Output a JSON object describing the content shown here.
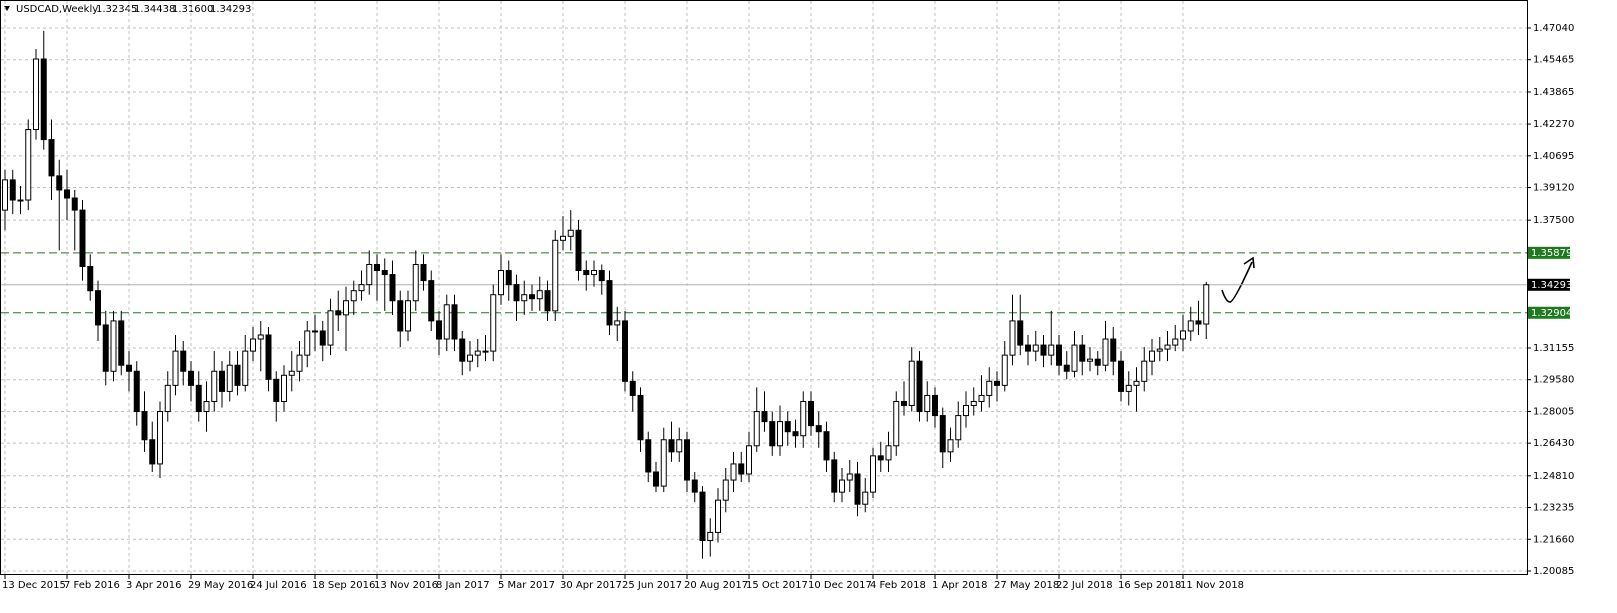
{
  "header": {
    "symbol": "USDCAD,Weekly",
    "ohlc": [
      "1.32345",
      "1.34438",
      "1.31600",
      "1.34293"
    ]
  },
  "chart_data": {
    "type": "candlestick",
    "categories": [
      "13 Dec 2015",
      null,
      null,
      null,
      null,
      null,
      null,
      null,
      "7 Feb 2016",
      null,
      null,
      null,
      null,
      null,
      null,
      null,
      "3 Apr 2016",
      null,
      null,
      null,
      null,
      null,
      null,
      null,
      "29 May 2016",
      null,
      null,
      null,
      null,
      null,
      null,
      null,
      "24 Jul 2016",
      null,
      null,
      null,
      null,
      null,
      null,
      null,
      "18 Sep 2016",
      null,
      null,
      null,
      null,
      null,
      null,
      null,
      "13 Nov 2016",
      null,
      null,
      null,
      null,
      null,
      null,
      null,
      "8 Jan 2017",
      null,
      null,
      null,
      null,
      null,
      null,
      null,
      "5 Mar 2017",
      null,
      null,
      null,
      null,
      null,
      null,
      null,
      "30 Apr 2017",
      null,
      null,
      null,
      null,
      null,
      null,
      null,
      "25 Jun 2017",
      null,
      null,
      null,
      null,
      null,
      null,
      null,
      "20 Aug 2017",
      null,
      null,
      null,
      null,
      null,
      null,
      null,
      "15 Oct 2017",
      null,
      null,
      null,
      null,
      null,
      null,
      null,
      "10 Dec 2017",
      null,
      null,
      null,
      null,
      null,
      null,
      null,
      "4 Feb 2018",
      null,
      null,
      null,
      null,
      null,
      null,
      null,
      "1 Apr 2018",
      null,
      null,
      null,
      null,
      null,
      null,
      null,
      "27 May 2018",
      null,
      null,
      null,
      null,
      null,
      null,
      null,
      "22 Jul 2018",
      null,
      null,
      null,
      null,
      null,
      null,
      null,
      "16 Sep 2018",
      null,
      null,
      null,
      null,
      null,
      null,
      null,
      "11 Nov 2018",
      null,
      null,
      null
    ],
    "open": [
      1.38,
      1.395,
      1.385,
      1.385,
      1.42,
      1.455,
      1.415,
      1.397,
      1.39,
      1.386,
      1.38,
      1.352,
      1.34,
      1.323,
      1.3,
      1.325,
      1.303,
      1.3,
      1.28,
      1.266,
      1.254,
      1.28,
      1.293,
      1.31,
      1.3,
      1.293,
      1.28,
      1.285,
      1.3,
      1.29,
      1.303,
      1.293,
      1.31,
      1.316,
      1.318,
      1.296,
      1.285,
      1.298,
      1.3,
      1.308,
      1.32,
      1.32,
      1.313,
      1.33,
      1.328,
      1.335,
      1.34,
      1.343,
      1.353,
      1.35,
      1.348,
      1.335,
      1.32,
      1.335,
      1.353,
      1.345,
      1.325,
      1.316,
      1.333,
      1.316,
      1.305,
      1.308,
      1.31,
      1.31,
      1.338,
      1.35,
      1.343,
      1.335,
      1.338,
      1.336,
      1.34,
      1.33,
      1.365,
      1.367,
      1.37,
      1.35,
      1.348,
      1.35,
      1.345,
      1.323,
      1.325,
      1.295,
      1.288,
      1.266,
      1.25,
      1.243,
      1.266,
      1.26,
      1.266,
      1.246,
      1.24,
      1.216,
      1.22,
      1.236,
      1.246,
      1.254,
      1.249,
      1.263,
      1.28,
      1.275,
      1.263,
      1.275,
      1.27,
      1.268,
      1.285,
      1.273,
      1.27,
      1.256,
      1.24,
      1.246,
      1.249,
      1.234,
      1.24,
      1.258,
      1.256,
      1.263,
      1.285,
      1.283,
      1.305,
      1.28,
      1.288,
      1.278,
      1.26,
      1.266,
      1.278,
      1.283,
      1.285,
      1.288,
      1.295,
      1.293,
      1.308,
      1.325,
      1.313,
      1.31,
      1.313,
      1.308,
      1.313,
      1.303,
      1.3,
      1.313,
      1.305,
      1.306,
      1.303,
      1.316,
      1.305,
      1.29,
      1.293,
      1.295,
      1.305,
      1.31,
      1.311,
      1.313,
      1.316,
      1.32,
      1.325,
      1.32345
    ],
    "high": [
      1.4,
      1.4,
      1.392,
      1.425,
      1.46,
      1.469,
      1.425,
      1.405,
      1.4,
      1.39,
      1.385,
      1.358,
      1.345,
      1.33,
      1.33,
      1.33,
      1.31,
      1.305,
      1.29,
      1.275,
      1.285,
      1.3,
      1.318,
      1.315,
      1.305,
      1.3,
      1.295,
      1.31,
      1.305,
      1.31,
      1.31,
      1.318,
      1.322,
      1.325,
      1.322,
      1.3,
      1.303,
      1.31,
      1.315,
      1.325,
      1.328,
      1.325,
      1.336,
      1.34,
      1.342,
      1.345,
      1.35,
      1.36,
      1.358,
      1.356,
      1.355,
      1.34,
      1.34,
      1.36,
      1.358,
      1.35,
      1.33,
      1.338,
      1.338,
      1.32,
      1.315,
      1.316,
      1.318,
      1.343,
      1.358,
      1.355,
      1.348,
      1.345,
      1.343,
      1.347,
      1.345,
      1.37,
      1.377,
      1.38,
      1.375,
      1.355,
      1.355,
      1.353,
      1.35,
      1.332,
      1.33,
      1.3,
      1.292,
      1.27,
      1.255,
      1.272,
      1.275,
      1.272,
      1.27,
      1.25,
      1.243,
      1.227,
      1.242,
      1.252,
      1.26,
      1.26,
      1.27,
      1.292,
      1.29,
      1.28,
      1.283,
      1.28,
      1.276,
      1.29,
      1.29,
      1.28,
      1.275,
      1.26,
      1.252,
      1.256,
      1.255,
      1.247,
      1.262,
      1.265,
      1.27,
      1.29,
      1.295,
      1.312,
      1.31,
      1.295,
      1.292,
      1.282,
      1.272,
      1.285,
      1.29,
      1.292,
      1.298,
      1.302,
      1.3,
      1.315,
      1.338,
      1.338,
      1.318,
      1.32,
      1.318,
      1.33,
      1.318,
      1.31,
      1.32,
      1.318,
      1.312,
      1.31,
      1.325,
      1.322,
      1.31,
      1.3,
      1.302,
      1.312,
      1.316,
      1.317,
      1.32,
      1.323,
      1.328,
      1.332,
      1.335,
      1.34438
    ],
    "low": [
      1.37,
      1.378,
      1.378,
      1.38,
      1.415,
      1.41,
      1.385,
      1.36,
      1.375,
      1.36,
      1.345,
      1.335,
      1.315,
      1.293,
      1.295,
      1.298,
      1.29,
      1.273,
      1.26,
      1.25,
      1.247,
      1.275,
      1.288,
      1.293,
      1.285,
      1.275,
      1.27,
      1.28,
      1.282,
      1.285,
      1.288,
      1.29,
      1.305,
      1.3,
      1.29,
      1.275,
      1.28,
      1.29,
      1.295,
      1.302,
      1.31,
      1.305,
      1.308,
      1.32,
      1.31,
      1.328,
      1.335,
      1.338,
      1.335,
      1.33,
      1.328,
      1.312,
      1.315,
      1.33,
      1.34,
      1.32,
      1.308,
      1.31,
      1.31,
      1.298,
      1.3,
      1.302,
      1.305,
      1.305,
      1.333,
      1.335,
      1.325,
      1.328,
      1.33,
      1.33,
      1.325,
      1.325,
      1.36,
      1.36,
      1.345,
      1.34,
      1.342,
      1.338,
      1.318,
      1.315,
      1.29,
      1.28,
      1.26,
      1.245,
      1.24,
      1.24,
      1.255,
      1.255,
      1.24,
      1.235,
      1.207,
      1.208,
      1.215,
      1.23,
      1.24,
      1.245,
      1.245,
      1.26,
      1.27,
      1.258,
      1.258,
      1.263,
      1.262,
      1.262,
      1.268,
      1.262,
      1.25,
      1.235,
      1.235,
      1.24,
      1.228,
      1.23,
      1.237,
      1.25,
      1.25,
      1.258,
      1.278,
      1.28,
      1.275,
      1.275,
      1.272,
      1.252,
      1.255,
      1.262,
      1.272,
      1.278,
      1.28,
      1.282,
      1.285,
      1.29,
      1.303,
      1.308,
      1.303,
      1.305,
      1.302,
      1.303,
      1.298,
      1.296,
      1.297,
      1.298,
      1.3,
      1.298,
      1.3,
      1.298,
      1.285,
      1.283,
      1.28,
      1.29,
      1.298,
      1.305,
      1.305,
      1.31,
      1.31,
      1.315,
      1.318,
      1.316
    ],
    "close": [
      1.395,
      1.385,
      1.385,
      1.42,
      1.455,
      1.415,
      1.397,
      1.39,
      1.386,
      1.38,
      1.352,
      1.34,
      1.323,
      1.3,
      1.325,
      1.303,
      1.3,
      1.28,
      1.266,
      1.254,
      1.28,
      1.293,
      1.31,
      1.3,
      1.293,
      1.28,
      1.285,
      1.3,
      1.29,
      1.303,
      1.293,
      1.31,
      1.316,
      1.318,
      1.296,
      1.285,
      1.298,
      1.3,
      1.308,
      1.32,
      1.32,
      1.313,
      1.33,
      1.328,
      1.335,
      1.34,
      1.343,
      1.353,
      1.35,
      1.348,
      1.335,
      1.32,
      1.335,
      1.353,
      1.345,
      1.325,
      1.316,
      1.333,
      1.316,
      1.305,
      1.308,
      1.31,
      1.31,
      1.338,
      1.35,
      1.343,
      1.335,
      1.338,
      1.336,
      1.34,
      1.33,
      1.365,
      1.367,
      1.37,
      1.35,
      1.348,
      1.35,
      1.345,
      1.323,
      1.325,
      1.295,
      1.288,
      1.266,
      1.25,
      1.243,
      1.266,
      1.26,
      1.266,
      1.246,
      1.24,
      1.216,
      1.22,
      1.236,
      1.246,
      1.254,
      1.249,
      1.263,
      1.28,
      1.275,
      1.263,
      1.275,
      1.27,
      1.268,
      1.285,
      1.273,
      1.27,
      1.256,
      1.24,
      1.246,
      1.249,
      1.234,
      1.24,
      1.258,
      1.256,
      1.263,
      1.285,
      1.283,
      1.305,
      1.28,
      1.288,
      1.278,
      1.26,
      1.266,
      1.278,
      1.283,
      1.285,
      1.288,
      1.295,
      1.293,
      1.308,
      1.325,
      1.313,
      1.31,
      1.313,
      1.308,
      1.313,
      1.303,
      1.3,
      1.313,
      1.305,
      1.306,
      1.303,
      1.316,
      1.305,
      1.29,
      1.293,
      1.295,
      1.305,
      1.31,
      1.311,
      1.313,
      1.316,
      1.32,
      1.325,
      1.32345,
      1.34293
    ],
    "up_color": "#ffffff",
    "down_color": "#000000",
    "outline_color": "#000000",
    "ylim": [
      1.19886,
      1.48281
    ],
    "yticks": [
      {
        "value": 1.4704,
        "label": "1.47040"
      },
      {
        "value": 1.45465,
        "label": "1.45465"
      },
      {
        "value": 1.43865,
        "label": "1.43865"
      },
      {
        "value": 1.4227,
        "label": "1.42270"
      },
      {
        "value": 1.40695,
        "label": "1.40695"
      },
      {
        "value": 1.3912,
        "label": "1.39120"
      },
      {
        "value": 1.375,
        "label": "1.37500"
      },
      {
        "value": 1.31155,
        "label": "1.31155"
      },
      {
        "value": 1.2958,
        "label": "1.29580"
      },
      {
        "value": 1.28005,
        "label": "1.28005"
      },
      {
        "value": 1.2643,
        "label": "1.26430"
      },
      {
        "value": 1.2481,
        "label": "1.24810"
      },
      {
        "value": 1.23235,
        "label": "1.23235"
      },
      {
        "value": 1.2166,
        "label": "1.21660"
      },
      {
        "value": 1.20085,
        "label": "1.20085"
      }
    ],
    "grid": true,
    "hlines": [
      {
        "value": 1.35879,
        "label": "1.35879"
      },
      {
        "value": 1.32904,
        "label": "1.32904"
      }
    ],
    "hline_color": "#1f7a1f",
    "current_price": {
      "value": 1.34293,
      "label": "1.34293"
    }
  }
}
